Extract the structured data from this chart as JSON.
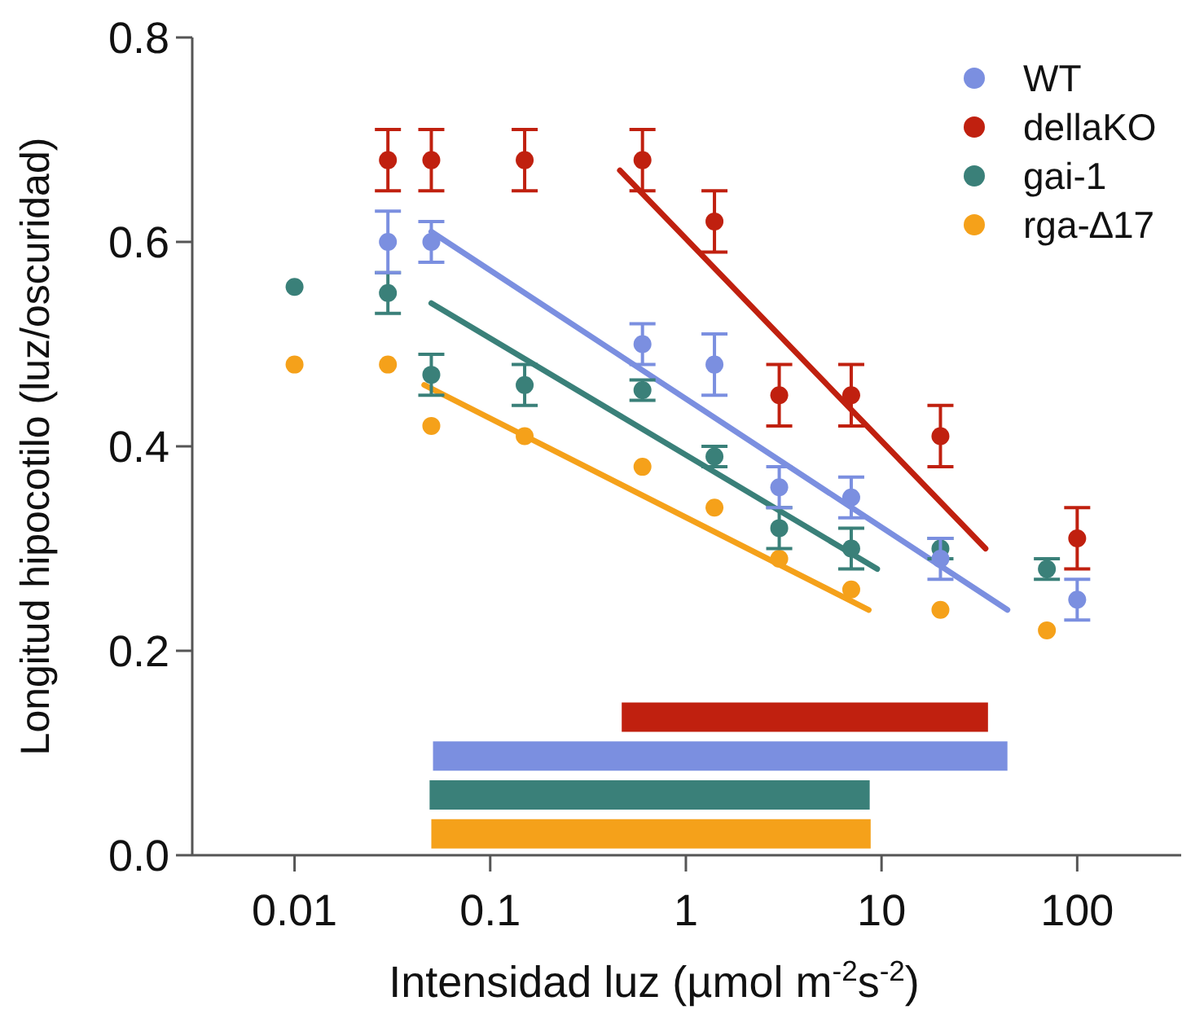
{
  "chart_data": {
    "type": "scatter",
    "xlabel": "Intensidad luz (µmol m$^{-2}$s$^{-2}$)",
    "ylabel": "Longitud hipocotilo (luz/oscuridad)",
    "log": "x",
    "grid": false,
    "legend": "top right",
    "marker": "circle",
    "line_style": "solid",
    "xlim": [
      0.003,
      340
    ],
    "xticks": [
      0.01,
      0.1,
      1,
      10,
      100
    ],
    "ylim": [
      0,
      0.8
    ],
    "yticks": [
      {
        "value": 0,
        "label": "0.0"
      },
      {
        "value": 0.2,
        "label": "0.2"
      },
      {
        "value": 0.4,
        "label": "0.4"
      },
      {
        "value": 0.6,
        "label": "0.6"
      },
      {
        "value": 0.8,
        "label": "0.8"
      }
    ],
    "series": [
      {
        "name": "WT",
        "color": "#7b8fe0",
        "x": [
          0.03,
          0.05,
          0.6,
          1.4,
          3,
          7,
          20,
          100
        ],
        "values": [
          0.6,
          0.6,
          0.5,
          0.48,
          0.36,
          0.35,
          0.29,
          0.25
        ],
        "errors": [
          0.03,
          0.02,
          0.02,
          0.03,
          0.02,
          0.02,
          0.02,
          0.02
        ]
      },
      {
        "name": "dellaKO",
        "color": "#c0200f",
        "x": [
          0.03,
          0.05,
          0.15,
          0.6,
          1.4,
          3,
          7,
          20,
          100
        ],
        "values": [
          0.68,
          0.68,
          0.68,
          0.68,
          0.62,
          0.45,
          0.45,
          0.41,
          0.31
        ],
        "errors": [
          0.03,
          0.03,
          0.03,
          0.03,
          0.03,
          0.03,
          0.03,
          0.03,
          0.03
        ]
      },
      {
        "name": "gai-1",
        "color": "#3a8079",
        "x": [
          0.01,
          0.03,
          0.05,
          0.15,
          0.6,
          1.4,
          3,
          7,
          20,
          70
        ],
        "values": [
          0.556,
          0.55,
          0.47,
          0.46,
          0.455,
          0.39,
          0.32,
          0.3,
          0.3,
          0.28
        ],
        "errors": [
          null,
          0.02,
          0.02,
          0.02,
          0.01,
          0.01,
          0.02,
          0.02,
          0.01,
          0.01
        ]
      },
      {
        "name": "rga-∆17",
        "color": "#f5a11a",
        "x": [
          0.01,
          0.03,
          0.05,
          0.15,
          0.6,
          1.4,
          3,
          7,
          20,
          70
        ],
        "values": [
          0.48,
          0.48,
          0.42,
          0.41,
          0.38,
          0.34,
          0.29,
          0.26,
          0.24,
          0.22
        ]
      },
      {
        "type": "line",
        "marker": "none",
        "color": "#7b8fe0",
        "x": [
          0.05,
          44
        ],
        "values": [
          0.61,
          0.24
        ]
      },
      {
        "type": "line",
        "marker": "none",
        "color": "#c0200f",
        "x": [
          0.46,
          34
        ],
        "values": [
          0.67,
          0.3
        ]
      },
      {
        "type": "line",
        "marker": "none",
        "color": "#3a8079",
        "x": [
          0.05,
          9.5
        ],
        "values": [
          0.54,
          0.28
        ]
      },
      {
        "type": "line",
        "marker": "none",
        "color": "#f5a11a",
        "x": [
          0.046,
          8.6
        ],
        "values": [
          0.46,
          0.24
        ]
      },
      {
        "type": "line",
        "marker": "none",
        "color": "#c0200f",
        "x": [
          0.47,
          35
        ],
        "values": [
          0.135,
          0.135
        ]
      },
      {
        "type": "line",
        "marker": "none",
        "color": "#7b8fe0",
        "x": [
          0.051,
          44
        ],
        "values": [
          0.097,
          0.097
        ]
      },
      {
        "type": "line",
        "marker": "none",
        "color": "#3a8079",
        "x": [
          0.049,
          8.7
        ],
        "values": [
          0.059,
          0.059
        ]
      },
      {
        "type": "line",
        "marker": "none",
        "color": "#f5a11a",
        "x": [
          0.05,
          8.8
        ],
        "values": [
          0.021,
          0.021
        ]
      }
    ]
  }
}
